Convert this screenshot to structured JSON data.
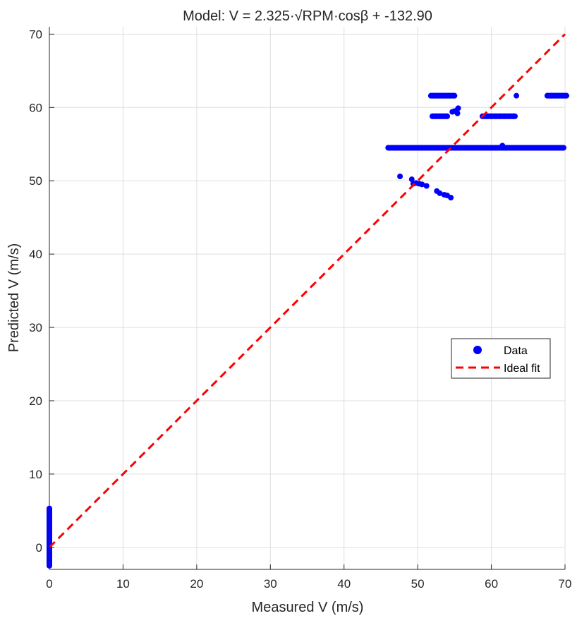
{
  "chart_data": {
    "type": "scatter",
    "title": "Model: V = 2.325·√RPM·cosβ + -132.90",
    "xlabel": "Measured V (m/s)",
    "ylabel": "Predicted V (m/s)",
    "xlim": [
      0,
      70
    ],
    "ylim": [
      -3,
      71
    ],
    "xticks": [
      0,
      10,
      20,
      30,
      40,
      50,
      60,
      70
    ],
    "yticks": [
      0,
      10,
      20,
      30,
      40,
      50,
      60,
      70
    ],
    "grid": true,
    "legend": {
      "position": "right",
      "entries": [
        "Data",
        "Ideal fit"
      ]
    },
    "series": [
      {
        "name": "Data",
        "color": "#0000ff",
        "marker": "circle",
        "points": [
          [
            0,
            5.3
          ],
          [
            0,
            4.9
          ],
          [
            0,
            4.5
          ],
          [
            0,
            4.0
          ],
          [
            0,
            3.6
          ],
          [
            0,
            3.2
          ],
          [
            0,
            2.8
          ],
          [
            0,
            2.4
          ],
          [
            0,
            2.0
          ],
          [
            0,
            1.6
          ],
          [
            0,
            1.2
          ],
          [
            0,
            0.8
          ],
          [
            0,
            0.4
          ],
          [
            0,
            0.0
          ],
          [
            0,
            -0.5
          ],
          [
            0,
            -2.2
          ],
          [
            0,
            -2.5
          ],
          [
            47.6,
            50.6
          ],
          [
            49.2,
            50.2
          ],
          [
            49.4,
            49.6
          ],
          [
            49.8,
            49.7
          ],
          [
            50.2,
            49.6
          ],
          [
            50.6,
            49.5
          ],
          [
            51.2,
            49.3
          ],
          [
            52.6,
            48.6
          ],
          [
            53.0,
            48.3
          ],
          [
            53.6,
            48.1
          ],
          [
            54.0,
            48.0
          ],
          [
            54.5,
            47.7
          ],
          [
            51.8,
            61.6
          ],
          [
            52.3,
            61.6
          ],
          [
            52.8,
            61.6
          ],
          [
            53.3,
            61.6
          ],
          [
            53.8,
            61.6
          ],
          [
            54.3,
            61.6
          ],
          [
            54.8,
            61.6
          ],
          [
            63.4,
            61.6
          ],
          [
            67.6,
            61.6
          ],
          [
            68.1,
            61.6
          ],
          [
            68.6,
            61.6
          ],
          [
            69.1,
            61.6
          ],
          [
            69.6,
            61.6
          ],
          [
            70.1,
            61.6
          ],
          [
            52.0,
            58.8
          ],
          [
            52.5,
            58.8
          ],
          [
            53.0,
            58.8
          ],
          [
            53.5,
            58.8
          ],
          [
            54.0,
            58.8
          ],
          [
            54.7,
            59.4
          ],
          [
            55.0,
            59.5
          ],
          [
            55.3,
            59.6
          ],
          [
            55.5,
            59.9
          ],
          [
            55.4,
            59.2
          ],
          [
            58.8,
            58.8
          ],
          [
            59.4,
            58.8
          ],
          [
            60.0,
            58.8
          ],
          [
            60.6,
            58.8
          ],
          [
            61.2,
            58.8
          ],
          [
            61.8,
            58.8
          ],
          [
            62.4,
            58.8
          ],
          [
            63.0,
            58.8
          ],
          [
            61.5,
            54.8
          ],
          [
            46.0,
            54.5
          ],
          [
            47.0,
            54.5
          ],
          [
            48.0,
            54.5
          ],
          [
            49.0,
            54.5
          ],
          [
            50.0,
            54.5
          ],
          [
            51.0,
            54.5
          ],
          [
            52.0,
            54.5
          ],
          [
            53.0,
            54.5
          ],
          [
            54.0,
            54.5
          ],
          [
            55.0,
            54.5
          ],
          [
            56.0,
            54.5
          ],
          [
            57.0,
            54.5
          ],
          [
            58.0,
            54.5
          ],
          [
            59.0,
            54.5
          ],
          [
            60.0,
            54.5
          ],
          [
            61.0,
            54.5
          ],
          [
            62.0,
            54.5
          ],
          [
            63.0,
            54.5
          ],
          [
            64.0,
            54.5
          ],
          [
            65.0,
            54.5
          ],
          [
            66.0,
            54.5
          ],
          [
            67.0,
            54.5
          ],
          [
            68.0,
            54.5
          ],
          [
            69.0,
            54.5
          ],
          [
            69.8,
            54.5
          ]
        ],
        "bands": [
          {
            "x": [
              46.0,
              69.8
            ],
            "y": 54.5
          },
          {
            "x": [
              51.8,
              55.0
            ],
            "y": 61.6
          },
          {
            "x": [
              67.6,
              70.2
            ],
            "y": 61.6
          },
          {
            "x": [
              52.0,
              54.0
            ],
            "y": 58.8
          },
          {
            "x": [
              58.8,
              63.2
            ],
            "y": 58.8
          },
          {
            "x": [
              0,
              0
            ],
            "yrange": [
              -2.5,
              5.3
            ]
          }
        ]
      },
      {
        "name": "Ideal fit",
        "color": "#ff0000",
        "style": "dashed",
        "x": [
          0,
          70
        ],
        "y": [
          0,
          70
        ]
      }
    ]
  }
}
